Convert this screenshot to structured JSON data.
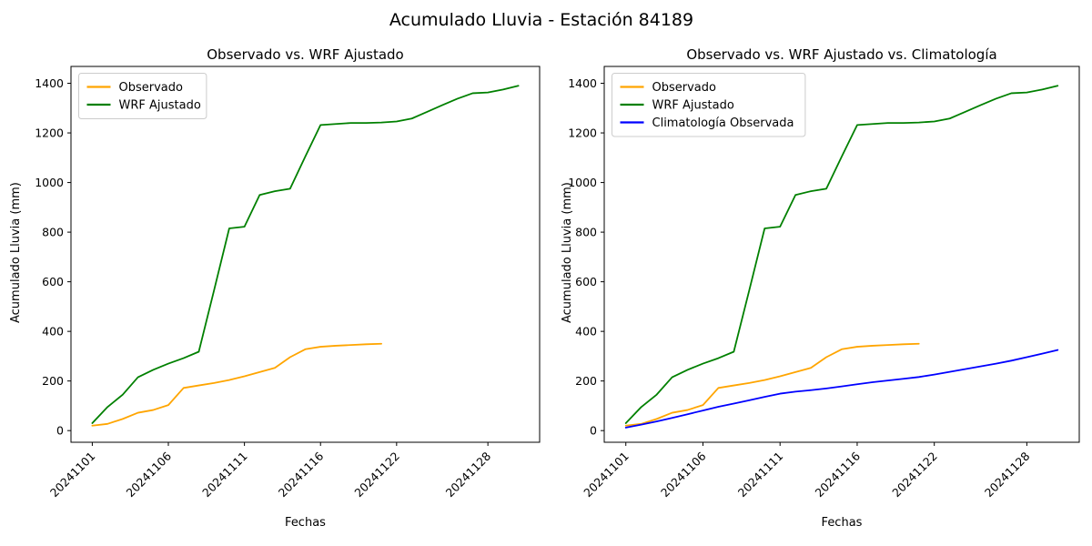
{
  "suptitle": "Acumulado Lluvia - Estación 84189",
  "colors": {
    "observado": "#FFA500",
    "wrf_ajustado": "#008000",
    "climatologia": "#0000FF",
    "axis": "#000000",
    "legend_border": "#cccccc",
    "background": "#ffffff"
  },
  "chart_data": [
    {
      "type": "line",
      "title": "Observado vs. WRF Ajustado",
      "xlabel": "Fechas",
      "ylabel": "Acumulado Lluvia (mm)",
      "grid": false,
      "legend_position": "upper-left",
      "x": [
        "20241101",
        "20241102",
        "20241103",
        "20241104",
        "20241105",
        "20241106",
        "20241107",
        "20241108",
        "20241109",
        "20241110",
        "20241111",
        "20241112",
        "20241113",
        "20241114",
        "20241115",
        "20241116",
        "20241117",
        "20241118",
        "20241119",
        "20241120",
        "20241122",
        "20241123",
        "20241124",
        "20241125",
        "20241126",
        "20241127",
        "20241128",
        "20241129",
        "20241130"
      ],
      "x_tick_labels": [
        "20241101",
        "20241106",
        "20241111",
        "20241116",
        "20241122",
        "20241128"
      ],
      "y_ticks": [
        0,
        200,
        400,
        600,
        800,
        1000,
        1200,
        1400
      ],
      "ylim": [
        -47,
        1468
      ],
      "series": [
        {
          "name": "Observado",
          "color": "#FFA500",
          "values": [
            20,
            27,
            47,
            72,
            83,
            103,
            172,
            182,
            192,
            204,
            219,
            236,
            253,
            296,
            328,
            338,
            342,
            345,
            348,
            350
          ]
        },
        {
          "name": "WRF Ajustado",
          "color": "#008000",
          "values": [
            30,
            95,
            145,
            215,
            245,
            270,
            292,
            318,
            565,
            815,
            822,
            950,
            965,
            975,
            1105,
            1232,
            1236,
            1240,
            1240,
            1242,
            1246,
            1258,
            1285,
            1312,
            1338,
            1360,
            1363,
            1375,
            1390
          ]
        }
      ]
    },
    {
      "type": "line",
      "title": "Observado vs. WRF Ajustado vs. Climatología",
      "xlabel": "Fechas",
      "ylabel": "Acumulado Lluvia (mm)",
      "grid": false,
      "legend_position": "upper-left",
      "x": [
        "20241101",
        "20241102",
        "20241103",
        "20241104",
        "20241105",
        "20241106",
        "20241107",
        "20241108",
        "20241109",
        "20241110",
        "20241111",
        "20241112",
        "20241113",
        "20241114",
        "20241115",
        "20241116",
        "20241117",
        "20241118",
        "20241119",
        "20241120",
        "20241122",
        "20241123",
        "20241124",
        "20241125",
        "20241126",
        "20241127",
        "20241128",
        "20241129",
        "20241130"
      ],
      "x_tick_labels": [
        "20241101",
        "20241106",
        "20241111",
        "20241116",
        "20241122",
        "20241128"
      ],
      "y_ticks": [
        0,
        200,
        400,
        600,
        800,
        1000,
        1200,
        1400
      ],
      "ylim": [
        -47,
        1468
      ],
      "series": [
        {
          "name": "Observado",
          "color": "#FFA500",
          "values": [
            20,
            27,
            47,
            72,
            83,
            103,
            172,
            182,
            192,
            204,
            219,
            236,
            253,
            296,
            328,
            338,
            342,
            345,
            348,
            350
          ]
        },
        {
          "name": "WRF Ajustado",
          "color": "#008000",
          "values": [
            30,
            95,
            145,
            215,
            245,
            270,
            292,
            318,
            565,
            815,
            822,
            950,
            965,
            975,
            1105,
            1232,
            1236,
            1240,
            1240,
            1242,
            1246,
            1258,
            1285,
            1312,
            1338,
            1360,
            1363,
            1375,
            1390
          ]
        },
        {
          "name": "Climatología Observada",
          "color": "#0000FF",
          "values": [
            12,
            24,
            37,
            51,
            66,
            81,
            96,
            109,
            122,
            136,
            149,
            157,
            163,
            170,
            178,
            187,
            195,
            202,
            209,
            216,
            226,
            237,
            248,
            259,
            270,
            282,
            296,
            310,
            325
          ]
        }
      ]
    }
  ]
}
